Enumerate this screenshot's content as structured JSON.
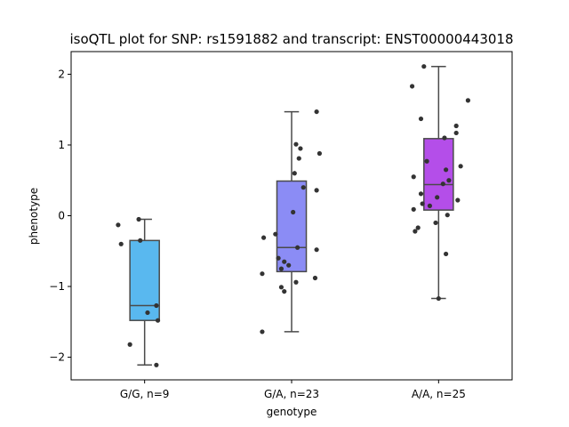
{
  "chart_data": {
    "type": "box",
    "title": "isoQTL plot for SNP: rs1591882 and transcript: ENST00000443018",
    "xlabel": "genotype",
    "ylabel": "phenotype",
    "ylim": [
      -2.32,
      2.32
    ],
    "yticks": [
      -2,
      -1,
      0,
      1,
      2
    ],
    "categories": [
      "G/G, n=9",
      "G/A, n=23",
      "A/A, n=25"
    ],
    "colors": [
      "#59b8ef",
      "#8b8cf5",
      "#b44ee9"
    ],
    "boxes": [
      {
        "category": "G/G, n=9",
        "whisker_low": -2.11,
        "q1": -1.48,
        "median": -1.27,
        "q3": -0.35,
        "whisker_high": -0.05
      },
      {
        "category": "G/A, n=23",
        "whisker_low": -1.64,
        "q1": -0.79,
        "median": -0.45,
        "q3": 0.49,
        "whisker_high": 1.47
      },
      {
        "category": "A/A, n=25",
        "whisker_low": -1.17,
        "q1": 0.08,
        "median": 0.44,
        "q3": 1.09,
        "whisker_high": 2.11
      }
    ],
    "points": [
      {
        "category": "G/G, n=9",
        "values": [
          -0.05,
          -0.13,
          -0.35,
          -0.4,
          -1.27,
          -1.37,
          -1.48,
          -1.82,
          -2.11
        ],
        "jitter": [
          -0.04,
          -0.18,
          -0.03,
          -0.16,
          0.08,
          0.02,
          0.09,
          -0.1,
          0.08
        ]
      },
      {
        "category": "G/A, n=23",
        "values": [
          1.47,
          1.01,
          0.95,
          0.88,
          0.81,
          0.6,
          0.4,
          0.36,
          0.05,
          -0.26,
          -0.31,
          -0.45,
          -0.48,
          -0.6,
          -0.65,
          -0.7,
          -0.75,
          -0.82,
          -0.88,
          -0.94,
          -1.01,
          -1.07,
          -1.64
        ],
        "jitter": [
          0.17,
          0.03,
          0.06,
          0.19,
          0.05,
          0.02,
          0.08,
          0.17,
          0.01,
          -0.11,
          -0.19,
          0.04,
          0.17,
          -0.09,
          -0.05,
          -0.02,
          -0.07,
          -0.2,
          0.16,
          0.03,
          -0.07,
          -0.05,
          -0.2
        ]
      },
      {
        "category": "A/A, n=25",
        "values": [
          2.11,
          1.83,
          1.63,
          1.37,
          1.27,
          1.17,
          1.1,
          0.77,
          0.7,
          0.65,
          0.55,
          0.5,
          0.45,
          0.31,
          0.26,
          0.17,
          0.14,
          0.09,
          0.01,
          -0.1,
          -0.17,
          -0.22,
          -0.54,
          -1.17,
          0.22
        ],
        "jitter": [
          -0.1,
          -0.18,
          0.2,
          -0.12,
          0.12,
          0.12,
          0.04,
          -0.08,
          0.15,
          0.05,
          -0.17,
          0.07,
          0.03,
          -0.12,
          -0.01,
          -0.11,
          -0.06,
          -0.17,
          0.06,
          -0.02,
          -0.14,
          -0.16,
          0.05,
          0,
          0.13
        ]
      }
    ]
  }
}
